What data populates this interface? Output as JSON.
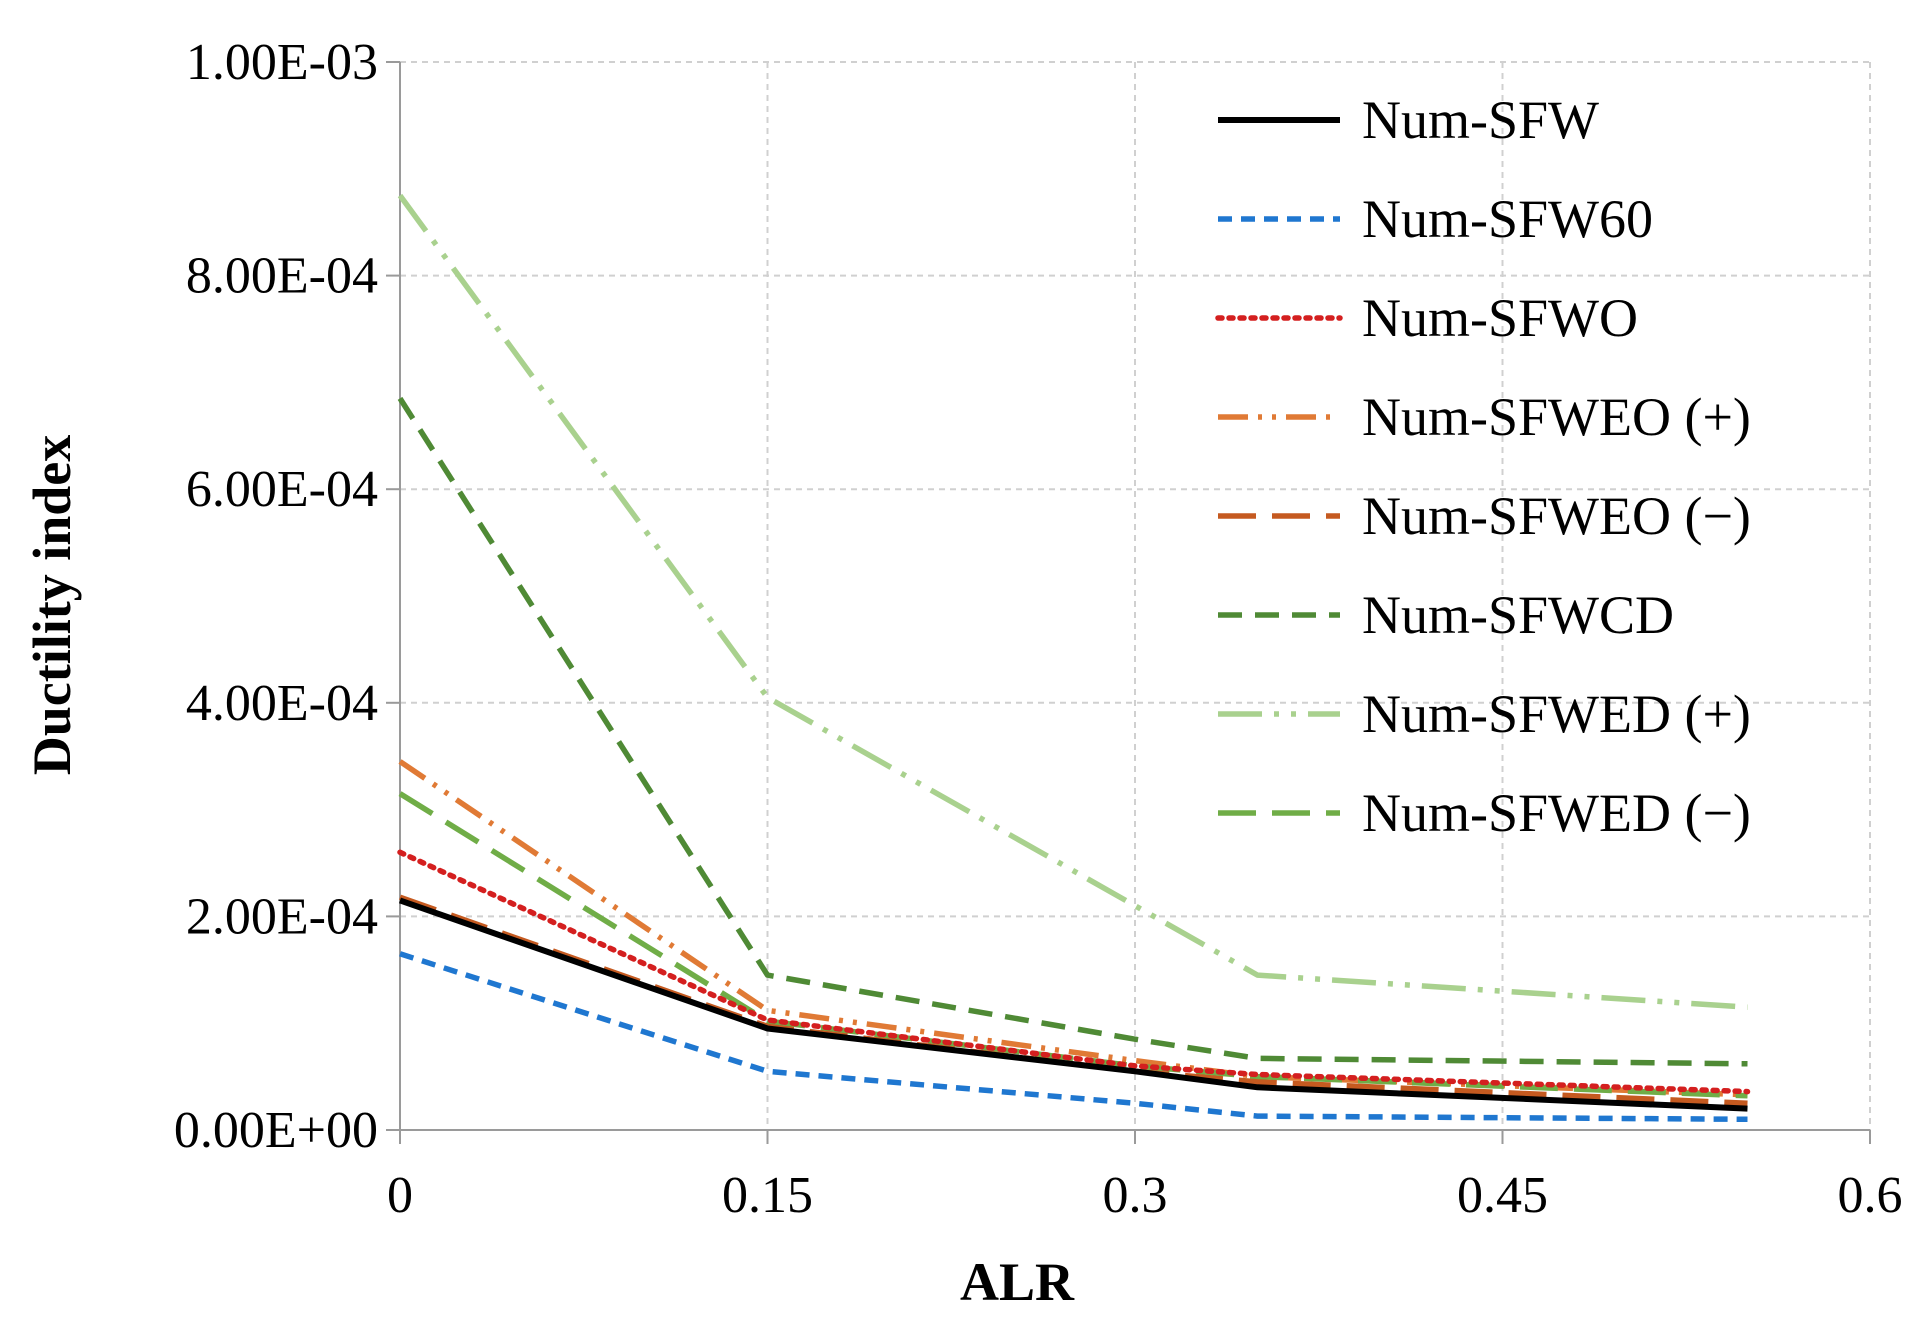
{
  "chart_data": {
    "type": "line",
    "title": "",
    "xlabel": "ALR",
    "ylabel": "Ductility index",
    "xlim": [
      0,
      0.6
    ],
    "ylim": [
      0,
      0.001
    ],
    "x_ticks": [
      0,
      0.15,
      0.3,
      0.45,
      0.6
    ],
    "x_tick_labels": [
      "0",
      "0.15",
      "0.3",
      "0.45",
      "0.6"
    ],
    "y_ticks": [
      0,
      0.0002,
      0.0004,
      0.0006,
      0.0008,
      0.001
    ],
    "y_tick_labels": [
      "0.00E+00",
      "2.00E-04",
      "4.00E-04",
      "6.00E-04",
      "8.00E-04",
      "1.00E-03"
    ],
    "grid": true,
    "legend_position": "top-right",
    "x": [
      0,
      0.15,
      0.3,
      0.35,
      0.55
    ],
    "series": [
      {
        "name": "Num-SFW",
        "color": "#000000",
        "dash": "solid",
        "values": [
          0.000215,
          9.5e-05,
          5.5e-05,
          4e-05,
          2e-05
        ]
      },
      {
        "name": "Num-SFW60",
        "color": "#1f77d0",
        "dash": "short-dash",
        "values": [
          0.000165,
          5.5e-05,
          2.5e-05,
          1.3e-05,
          1e-05
        ]
      },
      {
        "name": "Num-SFWO",
        "color": "#d41f1f",
        "dash": "dotted",
        "values": [
          0.00026,
          0.000103,
          6e-05,
          5.2e-05,
          3.6e-05
        ]
      },
      {
        "name": "Num-SFWEO (+)",
        "color": "#e07a35",
        "dash": "dash-dot-dot",
        "values": [
          0.000345,
          0.000112,
          6.5e-05,
          5e-05,
          3.3e-05
        ]
      },
      {
        "name": "Num-SFWEO (−)",
        "color": "#c55a20",
        "dash": "long-dash",
        "values": [
          0.000218,
          9.7e-05,
          5.5e-05,
          4.5e-05,
          2.5e-05
        ]
      },
      {
        "name": "Num-SFWCD",
        "color": "#4f8a35",
        "dash": "dash",
        "values": [
          0.000685,
          0.000145,
          8.5e-05,
          6.7e-05,
          6.2e-05
        ]
      },
      {
        "name": "Num-SFWED (+)",
        "color": "#a9d18e",
        "dash": "long-dash-dot-dot",
        "values": [
          0.000875,
          0.000405,
          0.00021,
          0.000145,
          0.000115
        ]
      },
      {
        "name": "Num-SFWED (−)",
        "color": "#70ad47",
        "dash": "long-dash",
        "values": [
          0.000315,
          0.000102,
          6e-05,
          5e-05,
          3.2e-05
        ]
      }
    ]
  }
}
